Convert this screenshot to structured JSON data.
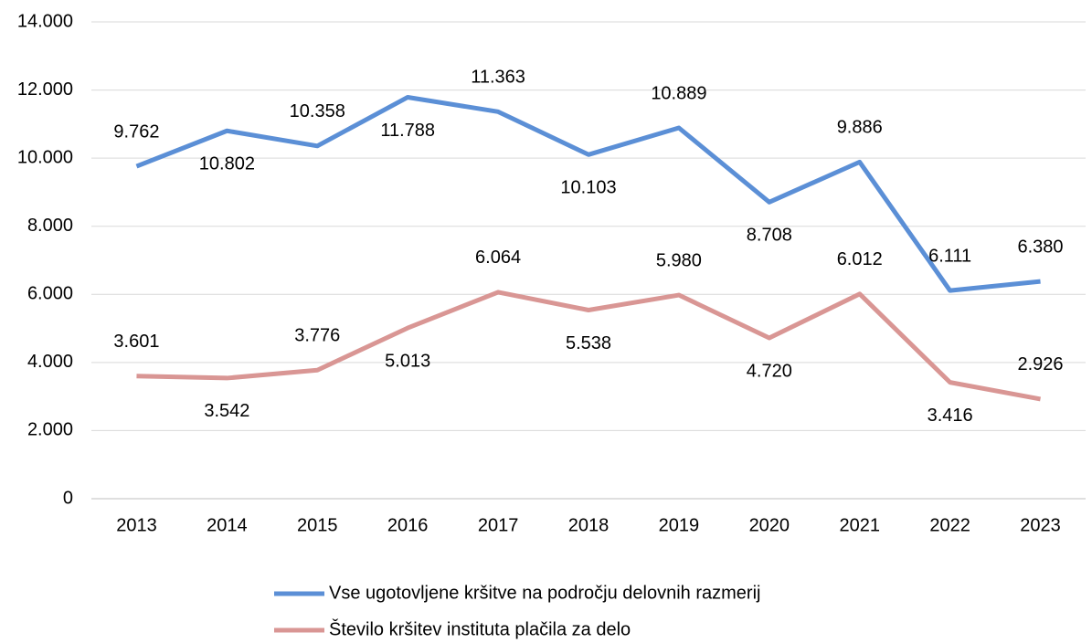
{
  "chart_data": {
    "type": "line",
    "categories": [
      "2013",
      "2014",
      "2015",
      "2016",
      "2017",
      "2018",
      "2019",
      "2020",
      "2021",
      "2022",
      "2023"
    ],
    "series": [
      {
        "name": "Vse ugotovljene kršitve na področju delovnih razmerij",
        "color": "#5b8fd6",
        "values": [
          9762,
          10802,
          10358,
          11788,
          11363,
          10103,
          10889,
          8708,
          9886,
          6111,
          6380
        ],
        "value_labels": [
          "9.762",
          "10.802",
          "10.358",
          "11.788",
          "11.363",
          "10.103",
          "10.889",
          "8.708",
          "9.886",
          "6.111",
          "6.380"
        ]
      },
      {
        "name": "Število kršitev instituta plačila za delo",
        "color": "#d99694",
        "values": [
          3601,
          3542,
          3776,
          5013,
          6064,
          5538,
          5980,
          4720,
          6012,
          3416,
          2926
        ],
        "value_labels": [
          "3.601",
          "3.542",
          "3.776",
          "5.013",
          "6.064",
          "5.538",
          "5.980",
          "4.720",
          "6.012",
          "3.416",
          "2.926"
        ]
      }
    ],
    "ylim": [
      0,
      14000
    ],
    "yticks": [
      0,
      {
        "value": 2000,
        "label": "2.000"
      },
      {
        "value": 4000,
        "label": "4.000"
      },
      {
        "value": 6000,
        "label": "6.000"
      },
      {
        "value": 8000,
        "label": "8.000"
      },
      {
        "value": 10000,
        "label": "10.000"
      },
      {
        "value": 12000,
        "label": "12.000"
      },
      {
        "value": 14000,
        "label": "14.000"
      }
    ],
    "grid": true
  }
}
